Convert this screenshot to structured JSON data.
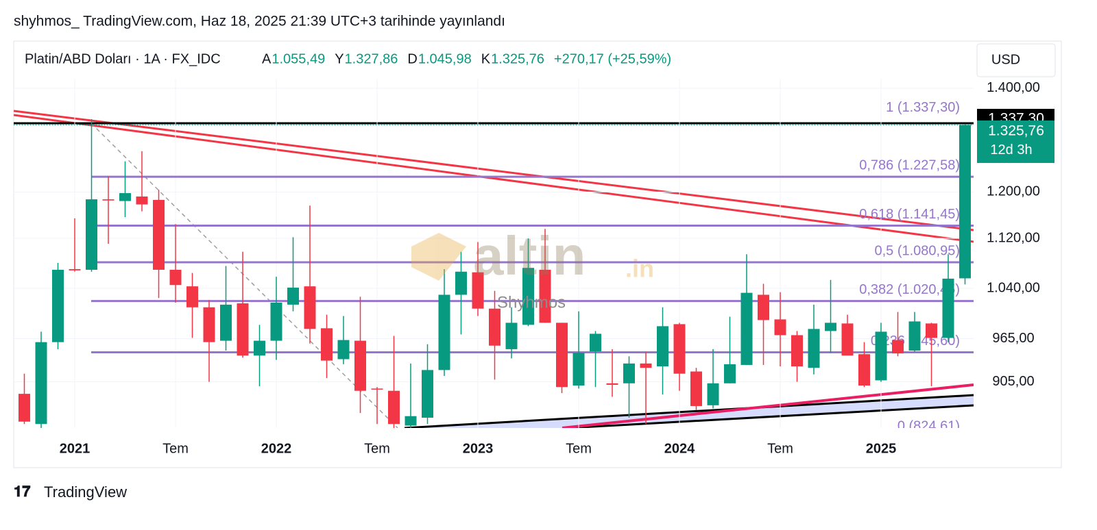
{
  "header": {
    "published": "shyhmos_ TradingView.com, Haz 18, 2025 21:39 UTC+3 tarihinde yayınlandı",
    "brand": "TradingView"
  },
  "chart_data": {
    "type": "candlestick",
    "title": "Platin/ABD Doları · 1A · FX_IDC",
    "legend": [
      {
        "key": "A",
        "value": "1.055,49"
      },
      {
        "key": "Y",
        "value": "1.327,86"
      },
      {
        "key": "D",
        "value": "1.045,98"
      },
      {
        "key": "K",
        "value": "1.325,76"
      }
    ],
    "change": "+270,17 (+25,59%)",
    "currency": "USD",
    "watermark": "altin",
    "watermark_suffix": ".in",
    "author_mark": "Shyhmos",
    "categories": [
      null,
      null,
      null,
      "2021",
      null,
      null,
      null,
      null,
      null,
      "Tem",
      null,
      null,
      null,
      null,
      null,
      "2022",
      null,
      null,
      null,
      null,
      null,
      "Tem",
      null,
      null,
      null,
      null,
      null,
      "2023",
      null,
      null,
      null,
      null,
      null,
      "Tem",
      null,
      null,
      null,
      null,
      null,
      "2024",
      null,
      null,
      null,
      null,
      null,
      "Tem",
      null,
      null,
      null,
      null,
      null,
      "2025",
      null,
      null,
      null,
      null,
      null
    ],
    "open": [
      889,
      850,
      960,
      1070,
      1069,
      1187,
      1184,
      1192,
      1186,
      1069,
      1043,
      1011,
      962,
      1017,
      941,
      962,
      1015,
      1043,
      980,
      936,
      962,
      896,
      893,
      848,
      858,
      921,
      1030,
      1065,
      1009,
      950,
      985,
      1069,
      988,
      900,
      947,
      903,
      903,
      930,
      926,
      986,
      919,
      874,
      903,
      928,
      1030,
      993,
      970,
      924,
      976,
      987,
      943,
      907,
      963,
      948,
      987,
      966,
      1055.49
    ],
    "high": [
      916,
      975,
      1080,
      1154,
      1337.3,
      1228,
      1256,
      1275,
      1204,
      1144,
      1064,
      1022,
      1075,
      1098,
      985,
      1058,
      1122,
      1176,
      1000,
      998,
      1027,
      898,
      969,
      930,
      957,
      1070,
      1098,
      1114,
      1036,
      1011,
      1120,
      1136,
      988,
      1005,
      976,
      950,
      940,
      946,
      1011,
      988,
      924,
      950,
      997,
      1094,
      1047,
      1034,
      976,
      1015,
      1053,
      1000,
      960,
      988,
      1004,
      1004,
      988,
      1094,
      1327.86
    ],
    "low": [
      850,
      845,
      950,
      1066,
      1066,
      1111,
      1156,
      1166,
      1025,
      1018,
      966,
      905,
      948,
      938,
      899,
      935,
      1005,
      958,
      910,
      929,
      864,
      850,
      845,
      845,
      850,
      913,
      971,
      998,
      908,
      937,
      983,
      988,
      890,
      896,
      898,
      885,
      858,
      850,
      888,
      893,
      868,
      870,
      903,
      928,
      928,
      926,
      905,
      915,
      945,
      942,
      898,
      905,
      940,
      946,
      899,
      960,
      1045.98
    ],
    "close": [
      853,
      960,
      1069,
      1068,
      1187,
      1185,
      1198,
      1178,
      1069,
      1045,
      1011,
      960,
      1015,
      941,
      962,
      1018,
      1041,
      979,
      934,
      963,
      893,
      895,
      850,
      860,
      921,
      1030,
      1066,
      1009,
      955,
      988,
      1072,
      988,
      898,
      945,
      972,
      901,
      930,
      924,
      983,
      916,
      873,
      903,
      929,
      1033,
      992,
      970,
      926,
      979,
      988,
      941,
      900,
      975,
      944,
      990,
      966,
      1055,
      1325.76
    ],
    "up_color": "#089981",
    "down_color": "#f23645",
    "ylim": [
      845,
      1420
    ],
    "log_scale": true,
    "yticks": [
      {
        "value": 1400,
        "label": "1.400,00"
      },
      {
        "value": 1200,
        "label": "1.200,00"
      },
      {
        "value": 1120,
        "label": "1.120,00"
      },
      {
        "value": 1040,
        "label": "1.040,00"
      },
      {
        "value": 965,
        "label": "965,00"
      },
      {
        "value": 905,
        "label": "905,00"
      }
    ],
    "fib_levels": [
      {
        "price": 1337.3,
        "label": "1 (1.337,30)"
      },
      {
        "price": 1227.58,
        "label": "0,786 (1.227,58)"
      },
      {
        "price": 1141.45,
        "label": "0,618 (1.141,45)"
      },
      {
        "price": 1080.95,
        "label": "0,5 (1.080,95)"
      },
      {
        "price": 1020.45,
        "label": "0,382 (1.020,45)"
      },
      {
        "price": 945.6,
        "label": "0,236 (945,60)"
      },
      {
        "price": 824.61,
        "label": "0 (824,61)"
      }
    ],
    "fib_color": "#9575cd",
    "price_badges": [
      {
        "value": 1337.3,
        "label": "1.337,30",
        "color": "#000000"
      },
      {
        "value": 1325.76,
        "label": "1.325,76",
        "color": "#089981",
        "countdown": "12d 3h"
      }
    ]
  }
}
